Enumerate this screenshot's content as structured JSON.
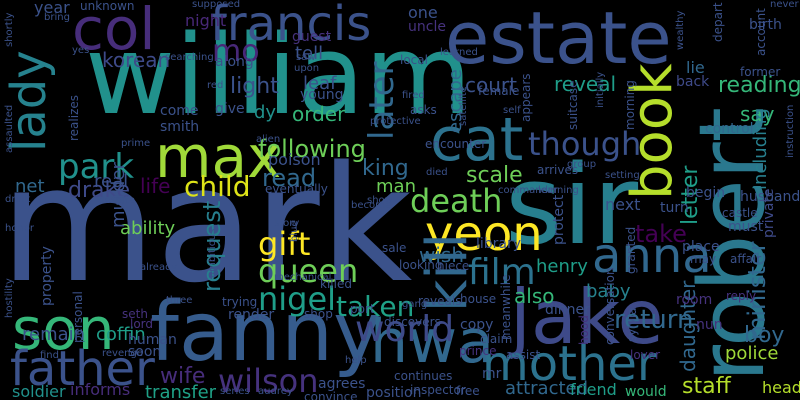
{
  "background": "#000000",
  "palette": {
    "purple": "#46327e",
    "indigo": "#3b528b",
    "blue": "#365c8d",
    "teal": "#277f8e",
    "cyan": "#21918c",
    "seagreen": "#1fa187",
    "green": "#4ac16d",
    "lime": "#a0da39",
    "yellow": "#fde725",
    "dark": "#440154"
  },
  "words": [
    {
      "text": "mark",
      "color": "#3b528b"
    },
    {
      "text": "william",
      "color": "#21918c"
    },
    {
      "text": "sir",
      "color": "#277f8e"
    },
    {
      "text": "estate",
      "color": "#3b528b"
    },
    {
      "text": "robert",
      "color": "#2a788e"
    },
    {
      "text": "fanny",
      "color": "#365c8d"
    },
    {
      "text": "jake",
      "color": "#3e4a89"
    },
    {
      "text": "hwa",
      "color": "#31688e"
    },
    {
      "text": "son",
      "color": "#35b779"
    },
    {
      "text": "cat",
      "color": "#2c728e"
    },
    {
      "text": "book",
      "color": "#b5de2b"
    },
    {
      "text": "max",
      "color": "#a0da39"
    },
    {
      "text": "col",
      "color": "#472d7b"
    },
    {
      "text": "lady",
      "color": "#26828e"
    },
    {
      "text": "father",
      "color": "#3b528b"
    },
    {
      "text": "mother",
      "color": "#2c728e"
    },
    {
      "text": "yeon",
      "color": "#fde725"
    },
    {
      "text": "anna",
      "color": "#31688e"
    },
    {
      "text": "francis",
      "color": "#3b528b"
    },
    {
      "text": "kill",
      "color": "#31688e"
    },
    {
      "text": "world",
      "color": "#3e4a89"
    },
    {
      "text": "film",
      "color": "#2c728e"
    },
    {
      "text": "park",
      "color": "#21918c"
    },
    {
      "text": "queen",
      "color": "#6ece58"
    },
    {
      "text": "gift",
      "color": "#fde725"
    },
    {
      "text": "nigel",
      "color": "#1f9e89"
    },
    {
      "text": "death",
      "color": "#6ece58"
    },
    {
      "text": "wilson",
      "color": "#46327e"
    },
    {
      "text": "though",
      "color": "#3b528b"
    },
    {
      "text": "child",
      "color": "#dde318"
    },
    {
      "text": "later",
      "color": "#31688e"
    },
    {
      "text": "minister",
      "color": "#31688e"
    },
    {
      "text": "taken",
      "color": "#1fa187"
    },
    {
      "text": "following",
      "color": "#6ece58"
    },
    {
      "text": "letter",
      "color": "#1f9e89"
    },
    {
      "text": "return",
      "color": "#31688e"
    },
    {
      "text": "request",
      "color": "#277f8e"
    },
    {
      "text": "daughter",
      "color": "#31688e"
    },
    {
      "text": "reading",
      "color": "#35b779"
    },
    {
      "text": "staff",
      "color": "#b5de2b"
    },
    {
      "text": "mo",
      "color": "#482878"
    },
    {
      "text": "read",
      "color": "#31688e"
    },
    {
      "text": "court",
      "color": "#3b528b"
    },
    {
      "text": "reveal",
      "color": "#1f9e89"
    },
    {
      "text": "take",
      "color": "#440154"
    },
    {
      "text": "wife",
      "color": "#472d7b"
    },
    {
      "text": "drake",
      "color": "#3e4a89"
    },
    {
      "text": "life",
      "color": "#440154"
    },
    {
      "text": "king",
      "color": "#31688e"
    },
    {
      "text": "henry",
      "color": "#1f9e89"
    },
    {
      "text": "also",
      "color": "#35b779"
    },
    {
      "text": "baby",
      "color": "#26828e"
    },
    {
      "text": "boy",
      "color": "#31688e"
    },
    {
      "text": "police",
      "color": "#a0da39"
    },
    {
      "text": "head",
      "color": "#b5de2b"
    },
    {
      "text": "say",
      "color": "#35b779"
    },
    {
      "text": "light",
      "color": "#3b528b"
    },
    {
      "text": "leaf",
      "color": "#3b528b"
    },
    {
      "text": "tell",
      "color": "#3b528b"
    },
    {
      "text": "order",
      "color": "#35b779"
    },
    {
      "text": "korean",
      "color": "#3e4a89"
    },
    {
      "text": "real",
      "color": "#3b528b"
    },
    {
      "text": "net",
      "color": "#31688e"
    },
    {
      "text": "man",
      "color": "#6ece58"
    },
    {
      "text": "scale",
      "color": "#6ece58"
    },
    {
      "text": "wish",
      "color": "#31688e"
    },
    {
      "text": "transfer",
      "color": "#1fa187"
    },
    {
      "text": "soldier",
      "color": "#21918c"
    },
    {
      "text": "informs",
      "color": "#472d7b"
    },
    {
      "text": "coffin",
      "color": "#1f9e89"
    },
    {
      "text": "remain",
      "color": "#3b528b"
    },
    {
      "text": "ability",
      "color": "#6ece58"
    },
    {
      "text": "murder",
      "color": "#3b528b"
    },
    {
      "text": "attracted",
      "color": "#31688e"
    },
    {
      "text": "friend",
      "color": "#1f9e89"
    },
    {
      "text": "would",
      "color": "#35b779"
    },
    {
      "text": "poison",
      "color": "#3b528b"
    },
    {
      "text": "escape",
      "color": "#31688e"
    },
    {
      "text": "control",
      "color": "#31688e"
    },
    {
      "text": "including",
      "color": "#277f8e"
    },
    {
      "text": "private",
      "color": "#3e4a89"
    },
    {
      "text": "husband",
      "color": "#3b528b"
    },
    {
      "text": "one",
      "color": "#3b528b"
    },
    {
      "text": "year",
      "color": "#3b528b"
    },
    {
      "text": "night",
      "color": "#482878"
    },
    {
      "text": "along",
      "color": "#3b528b"
    },
    {
      "text": "guest",
      "color": "#46327e"
    },
    {
      "text": "uncle",
      "color": "#46327e"
    },
    {
      "text": "young",
      "color": "#3b528b"
    },
    {
      "text": "come",
      "color": "#3b528b"
    },
    {
      "text": "give",
      "color": "#3b528b"
    },
    {
      "text": "smith",
      "color": "#3b528b"
    },
    {
      "text": "dy",
      "color": "#21918c"
    },
    {
      "text": "back",
      "color": "#3e4a89"
    },
    {
      "text": "lie",
      "color": "#31688e"
    },
    {
      "text": "next",
      "color": "#3b528b"
    },
    {
      "text": "turn",
      "color": "#3b528b"
    },
    {
      "text": "place",
      "color": "#3b528b"
    },
    {
      "text": "begin",
      "color": "#3b528b"
    },
    {
      "text": "castle",
      "color": "#3b528b"
    },
    {
      "text": "must",
      "color": "#3b528b"
    },
    {
      "text": "affair",
      "color": "#3b528b"
    },
    {
      "text": "may",
      "color": "#3b528b"
    },
    {
      "text": "nun",
      "color": "#46327e"
    },
    {
      "text": "room",
      "color": "#46327e"
    },
    {
      "text": "reply",
      "color": "#46327e"
    },
    {
      "text": "lover",
      "color": "#46327e"
    },
    {
      "text": "copy",
      "color": "#3b528b"
    },
    {
      "text": "dinner",
      "color": "#3b528b"
    },
    {
      "text": "library",
      "color": "#3b528b"
    },
    {
      "text": "reveals",
      "color": "#3b528b"
    },
    {
      "text": "house",
      "color": "#3b528b"
    },
    {
      "text": "port",
      "color": "#3b528b"
    },
    {
      "text": "sale",
      "color": "#3b528b"
    },
    {
      "text": "killed",
      "color": "#3b528b"
    },
    {
      "text": "human",
      "color": "#3b528b"
    },
    {
      "text": "soon",
      "color": "#3b528b"
    },
    {
      "text": "lord",
      "color": "#46327e"
    },
    {
      "text": "seth",
      "color": "#46327e"
    },
    {
      "text": "render",
      "color": "#3b528b"
    },
    {
      "text": "trying",
      "color": "#3b528b"
    },
    {
      "text": "shop",
      "color": "#3b528b"
    },
    {
      "text": "agrees",
      "color": "#3b528b"
    },
    {
      "text": "convince",
      "color": "#3b528b"
    },
    {
      "text": "position",
      "color": "#3b528b"
    },
    {
      "text": "inspector",
      "color": "#3b528b"
    },
    {
      "text": "free",
      "color": "#3b528b"
    },
    {
      "text": "continues",
      "color": "#3b528b"
    },
    {
      "text": "discovers",
      "color": "#3b528b"
    },
    {
      "text": "claim",
      "color": "#3b528b"
    },
    {
      "text": "prince",
      "color": "#46327e"
    },
    {
      "text": "assist",
      "color": "#3b528b"
    },
    {
      "text": "conversation",
      "color": "#3b528b"
    },
    {
      "text": "sylvia",
      "color": "#3b528b"
    },
    {
      "text": "meanwhile",
      "color": "#3b528b"
    },
    {
      "text": "mr",
      "color": "#3b528b"
    },
    {
      "text": "hood",
      "color": "#46327e"
    },
    {
      "text": "looking",
      "color": "#3b528b"
    },
    {
      "text": "niece",
      "color": "#3b528b"
    },
    {
      "text": "protect",
      "color": "#3b528b"
    },
    {
      "text": "granted",
      "color": "#3b528b"
    },
    {
      "text": "personal",
      "color": "#3b528b"
    },
    {
      "text": "property",
      "color": "#3b528b"
    },
    {
      "text": "mechanical",
      "color": "#3b528b"
    },
    {
      "text": "ambitious",
      "color": "#3b528b"
    },
    {
      "text": "already",
      "color": "#3b528b"
    },
    {
      "text": "hostility",
      "color": "#3b528b"
    },
    {
      "text": "revenge",
      "color": "#3b528b"
    },
    {
      "text": "find",
      "color": "#3b528b"
    },
    {
      "text": "three",
      "color": "#3b528b"
    },
    {
      "text": "blue",
      "color": "#3b528b"
    },
    {
      "text": "story",
      "color": "#3b528b"
    },
    {
      "text": "despite",
      "color": "#3b528b"
    },
    {
      "text": "drink",
      "color": "#3b528b"
    },
    {
      "text": "honor",
      "color": "#3b528b"
    },
    {
      "text": "assaulted",
      "color": "#3b528b"
    },
    {
      "text": "realizes",
      "color": "#3b528b"
    },
    {
      "text": "shortly",
      "color": "#3b528b"
    },
    {
      "text": "bring",
      "color": "#3b528b"
    },
    {
      "text": "unknown",
      "color": "#3b528b"
    },
    {
      "text": "yes",
      "color": "#3b528b"
    },
    {
      "text": "searching",
      "color": "#3b528b"
    },
    {
      "text": "supposed",
      "color": "#3b528b"
    },
    {
      "text": "upon",
      "color": "#3b528b"
    },
    {
      "text": "red",
      "color": "#3b528b"
    },
    {
      "text": "saw",
      "color": "#3b528b"
    },
    {
      "text": "prime",
      "color": "#3b528b"
    },
    {
      "text": "alien",
      "color": "#3b528b"
    },
    {
      "text": "eventually",
      "color": "#3b528b"
    },
    {
      "text": "become",
      "color": "#3b528b"
    },
    {
      "text": "show",
      "color": "#3b528b"
    },
    {
      "text": "died",
      "color": "#3b528b"
    },
    {
      "text": "encounter",
      "color": "#3b528b"
    },
    {
      "text": "protective",
      "color": "#3b528b"
    },
    {
      "text": "fired",
      "color": "#3b528b"
    },
    {
      "text": "asks",
      "color": "#3b528b"
    },
    {
      "text": "local",
      "color": "#3b528b"
    },
    {
      "text": "learned",
      "color": "#3b528b"
    },
    {
      "text": "female",
      "color": "#3b528b"
    },
    {
      "text": "satellite",
      "color": "#3b528b"
    },
    {
      "text": "self",
      "color": "#3b528b"
    },
    {
      "text": "appears",
      "color": "#3b528b"
    },
    {
      "text": "suitcase",
      "color": "#3b528b"
    },
    {
      "text": "initially",
      "color": "#3b528b"
    },
    {
      "text": "morning",
      "color": "#3b528b"
    },
    {
      "text": "arrives",
      "color": "#3b528b"
    },
    {
      "text": "group",
      "color": "#3b528b"
    },
    {
      "text": "setting",
      "color": "#3b528b"
    },
    {
      "text": "commander",
      "color": "#3b528b"
    },
    {
      "text": "learning",
      "color": "#3b528b"
    },
    {
      "text": "men",
      "color": "#3b528b"
    },
    {
      "text": "wealthy",
      "color": "#3b528b"
    },
    {
      "text": "depart",
      "color": "#3b528b"
    },
    {
      "text": "former",
      "color": "#3b528b"
    },
    {
      "text": "birth",
      "color": "#3b528b"
    },
    {
      "text": "account",
      "color": "#3b528b"
    },
    {
      "text": "never",
      "color": "#3b528b"
    },
    {
      "text": "instruction",
      "color": "#3b528b"
    },
    {
      "text": "help",
      "color": "#3b528b"
    },
    {
      "text": "gang",
      "color": "#3b528b"
    },
    {
      "text": "series",
      "color": "#3b528b"
    },
    {
      "text": "audrey",
      "color": "#3b528b"
    }
  ]
}
